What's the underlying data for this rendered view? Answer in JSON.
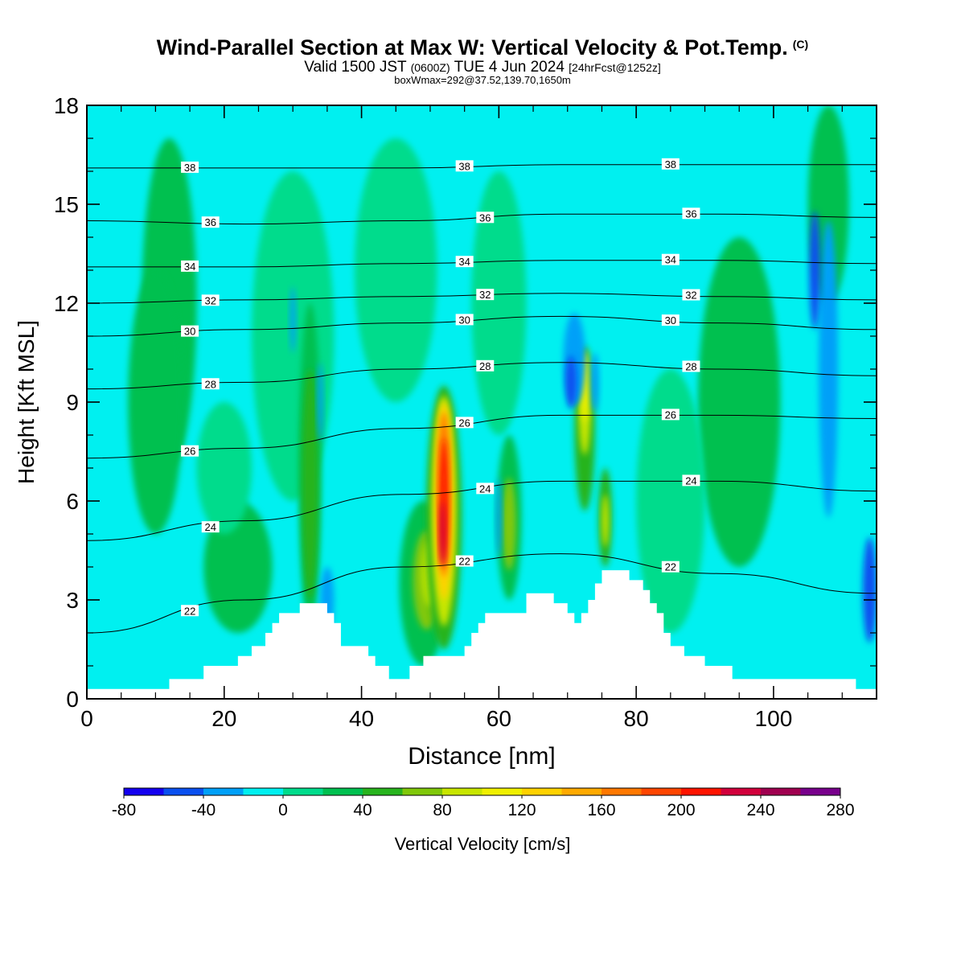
{
  "header": {
    "title": "Wind-Parallel Section at Max W: Vertical Velocity & Pot.Temp.",
    "title_tag": "(C)",
    "subtitle_main": "Valid 1500 JST",
    "subtitle_z": "(0600Z)",
    "subtitle_date": "TUE 4 Jun 2024",
    "subtitle_fcst": "[24hrFcst@1252z]",
    "subtitle2": "boxWmax=292@37.52,139.70,1650m"
  },
  "chart_data": {
    "type": "heatmap",
    "xlabel": "Distance [nm]",
    "ylabel": "Height [Kft MSL]",
    "xlim": [
      0,
      115
    ],
    "ylim": [
      0,
      18
    ],
    "x_ticks": [
      "0",
      "20",
      "40",
      "60",
      "80",
      "100"
    ],
    "y_ticks": [
      "0",
      "3",
      "6",
      "9",
      "12",
      "15",
      "18"
    ],
    "colorbar": {
      "label": "Vertical Velocity [cm/s]",
      "tick_labels": [
        "-80",
        "-40",
        "0",
        "40",
        "80",
        "120",
        "160",
        "200",
        "240",
        "280"
      ],
      "colors": [
        "#1400f0",
        "#0a50f0",
        "#00a0f8",
        "#00f0f0",
        "#00dc8c",
        "#00c050",
        "#28b41e",
        "#80c80a",
        "#c8e600",
        "#f0f000",
        "#ffd200",
        "#ffaa00",
        "#ff7800",
        "#ff4600",
        "#ff1400",
        "#d2003c",
        "#a00050",
        "#78008c"
      ]
    },
    "theta_contours": [
      {
        "label": "22",
        "y": [
          2.0,
          3.0,
          4.0,
          4.4,
          3.8,
          3.2
        ]
      },
      {
        "label": "24",
        "y": [
          4.8,
          5.4,
          6.2,
          6.6,
          6.6,
          6.3
        ]
      },
      {
        "label": "26",
        "y": [
          7.3,
          7.6,
          8.2,
          8.6,
          8.6,
          8.5
        ]
      },
      {
        "label": "28",
        "y": [
          9.4,
          9.6,
          10.0,
          10.2,
          10.0,
          9.8
        ]
      },
      {
        "label": "30",
        "y": [
          11.0,
          11.2,
          11.4,
          11.6,
          11.4,
          11.2
        ]
      },
      {
        "label": "32",
        "y": [
          12.0,
          12.1,
          12.2,
          12.3,
          12.2,
          12.1
        ]
      },
      {
        "label": "34",
        "y": [
          13.1,
          13.1,
          13.2,
          13.3,
          13.3,
          13.2
        ]
      },
      {
        "label": "36",
        "y": [
          14.5,
          14.4,
          14.5,
          14.7,
          14.7,
          14.6
        ]
      },
      {
        "label": "38",
        "y": [
          16.1,
          16.1,
          16.1,
          16.2,
          16.2,
          16.2
        ]
      }
    ],
    "terrain_height": [
      {
        "x": 0,
        "y": 0.3
      },
      {
        "x": 12,
        "y": 0.6
      },
      {
        "x": 17,
        "y": 1.0
      },
      {
        "x": 20,
        "y": 1.0
      },
      {
        "x": 22,
        "y": 1.3
      },
      {
        "x": 24,
        "y": 1.6
      },
      {
        "x": 26,
        "y": 2.0
      },
      {
        "x": 27,
        "y": 2.3
      },
      {
        "x": 28,
        "y": 2.6
      },
      {
        "x": 31,
        "y": 2.9
      },
      {
        "x": 34,
        "y": 2.9
      },
      {
        "x": 35,
        "y": 2.6
      },
      {
        "x": 36,
        "y": 2.3
      },
      {
        "x": 37,
        "y": 1.6
      },
      {
        "x": 40,
        "y": 1.6
      },
      {
        "x": 41,
        "y": 1.3
      },
      {
        "x": 42,
        "y": 1.0
      },
      {
        "x": 44,
        "y": 0.6
      },
      {
        "x": 47,
        "y": 1.0
      },
      {
        "x": 49,
        "y": 1.3
      },
      {
        "x": 54,
        "y": 1.3
      },
      {
        "x": 55,
        "y": 1.6
      },
      {
        "x": 56,
        "y": 2.0
      },
      {
        "x": 57,
        "y": 2.3
      },
      {
        "x": 58,
        "y": 2.6
      },
      {
        "x": 62,
        "y": 2.6
      },
      {
        "x": 64,
        "y": 3.2
      },
      {
        "x": 67,
        "y": 3.2
      },
      {
        "x": 68,
        "y": 2.9
      },
      {
        "x": 70,
        "y": 2.6
      },
      {
        "x": 71,
        "y": 2.3
      },
      {
        "x": 72,
        "y": 2.6
      },
      {
        "x": 73,
        "y": 3.0
      },
      {
        "x": 74,
        "y": 3.5
      },
      {
        "x": 75,
        "y": 3.9
      },
      {
        "x": 78,
        "y": 3.9
      },
      {
        "x": 79,
        "y": 3.6
      },
      {
        "x": 81,
        "y": 3.3
      },
      {
        "x": 82,
        "y": 2.9
      },
      {
        "x": 83,
        "y": 2.6
      },
      {
        "x": 84,
        "y": 2.0
      },
      {
        "x": 85,
        "y": 1.6
      },
      {
        "x": 87,
        "y": 1.3
      },
      {
        "x": 90,
        "y": 1.0
      },
      {
        "x": 94,
        "y": 0.6
      },
      {
        "x": 112,
        "y": 0.3
      },
      {
        "x": 115,
        "y": 0.3
      }
    ]
  }
}
